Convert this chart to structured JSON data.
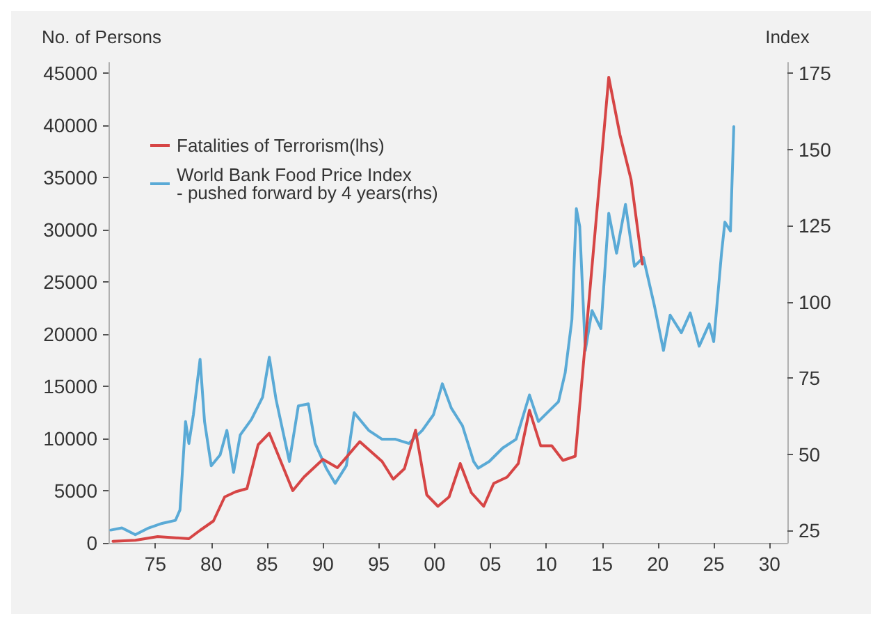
{
  "chart_data": {
    "type": "line",
    "ylabel": "No. of Persons",
    "y2label": "Index",
    "legend": "top left",
    "grid": false,
    "marker": "none",
    "line_style": "solid",
    "xlim": [
      1970.8,
      2031.6
    ],
    "xticks": [
      {
        "value": 1975,
        "label": "75"
      },
      {
        "value": 1980,
        "label": "80"
      },
      {
        "value": 1985,
        "label": "85"
      },
      {
        "value": 1990,
        "label": "90"
      },
      {
        "value": 1995,
        "label": "95"
      },
      {
        "value": 2000,
        "label": "00"
      },
      {
        "value": 2005,
        "label": "05"
      },
      {
        "value": 2010,
        "label": "10"
      },
      {
        "value": 2015,
        "label": "15"
      },
      {
        "value": 2020,
        "label": "20"
      },
      {
        "value": 2025,
        "label": "25"
      },
      {
        "value": 2030,
        "label": "30"
      }
    ],
    "ylim": [
      0,
      46000
    ],
    "yticks": [
      0,
      5000,
      10000,
      15000,
      20000,
      25000,
      30000,
      35000,
      40000,
      45000
    ],
    "y2lim": [
      21,
      178.5
    ],
    "y2ticks": [
      25,
      50,
      75,
      100,
      125,
      150,
      175
    ],
    "series": [
      {
        "name": "Fatalities of Terrorism(lhs)",
        "color": "#d64545",
        "x": [
          1971.2,
          1973.2,
          1975.2,
          1978,
          1979,
          1980.2,
          1981.2,
          1982.2,
          1983.2,
          1984.2,
          1985.2,
          1987.3,
          1988.3,
          1990,
          1991.3,
          1993.3,
          1995.3,
          1996.3,
          1997.3,
          1998.3,
          1999.3,
          2000.3,
          2001.3,
          2002.3,
          2003.3,
          2004.4,
          2005.3,
          2006.5,
          2007.5,
          2008.5,
          2009.5,
          2010.5,
          2011.5,
          2012.6,
          2015.6,
          2016.6,
          2017.6,
          2018.6
        ],
        "values": [
          150,
          250,
          600,
          400,
          1200,
          2100,
          4400,
          4900,
          5200,
          9400,
          10500,
          5000,
          6300,
          8000,
          7200,
          9700,
          7800,
          6100,
          7100,
          10800,
          4600,
          3500,
          4400,
          7600,
          4800,
          3500,
          5700,
          6300,
          7600,
          12700,
          9300,
          9300,
          7900,
          8300,
          44600,
          39100,
          34800,
          26700
        ]
      },
      {
        "name": "World Bank Food Price Index\n- pushed forward by 4 years(rhs)",
        "color": "#5aaad6",
        "axis": "y2",
        "x": [
          1971,
          1972,
          1973.2,
          1974.4,
          1975.6,
          1976.8,
          1977.2,
          1977.7,
          1978,
          1978.4,
          1979,
          1979.4,
          1980,
          1980.8,
          1981.4,
          1982,
          1982.6,
          1983.6,
          1984.6,
          1985.2,
          1985.8,
          1987,
          1987.8,
          1988.7,
          1989.3,
          1990.3,
          1991.1,
          1992.1,
          1992.8,
          1994.1,
          1995.3,
          1996.5,
          1997.7,
          1998.9,
          1999.9,
          2000.7,
          2001.5,
          2002.5,
          2003.5,
          2003.9,
          2004.9,
          2006.1,
          2007.3,
          2008.5,
          2009.3,
          2010.1,
          2011.1,
          2011.7,
          2012.3,
          2012.7,
          2013,
          2013.5,
          2014.1,
          2014.9,
          2015.6,
          2016.3,
          2017.1,
          2017.9,
          2018.7,
          2019.7,
          2020.5,
          2021.1,
          2022.1,
          2022.9,
          2023.7,
          2024.6,
          2025,
          2025.7,
          2026,
          2026.5,
          2026.8
        ],
        "values": [
          25.2,
          25.9,
          23.7,
          25.9,
          27.4,
          28.4,
          31.8,
          60.8,
          53.6,
          63,
          81.2,
          60.8,
          46.3,
          49.9,
          57.9,
          44.1,
          56.4,
          61.5,
          68.8,
          81.9,
          68.1,
          47.7,
          65.9,
          66.6,
          53.6,
          45.5,
          40.5,
          46.3,
          63.7,
          57.9,
          55,
          55,
          53.6,
          57.9,
          63,
          73.2,
          65.2,
          59.4,
          47.7,
          45.5,
          47.7,
          52.1,
          55,
          69.5,
          60.8,
          63.7,
          67.3,
          76.8,
          94.2,
          130.6,
          124.8,
          84.1,
          97.2,
          91.3,
          129.1,
          116,
          132,
          111.7,
          114.6,
          98.6,
          84.1,
          95.7,
          89.9,
          96.4,
          85.5,
          92.8,
          87,
          116,
          126.2,
          123.3,
          157.5
        ]
      }
    ]
  }
}
